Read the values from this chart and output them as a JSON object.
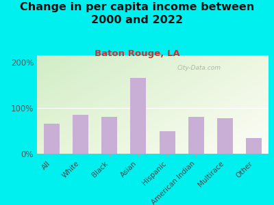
{
  "title": "Change in per capita income between\n2000 and 2022",
  "subtitle": "Baton Rouge, LA",
  "categories": [
    "All",
    "White",
    "Black",
    "Asian",
    "Hispanic",
    "American Indian",
    "Multirace",
    "Other"
  ],
  "values": [
    65,
    85,
    80,
    165,
    50,
    80,
    78,
    35
  ],
  "bar_color": "#c9aed6",
  "background_outer": "#00f0f0",
  "title_fontsize": 11.5,
  "subtitle_fontsize": 9.5,
  "subtitle_color": "#cc3333",
  "ylabel_ticks": [
    0,
    100,
    200
  ],
  "ylabel_labels": [
    "0%",
    "100%",
    "200%"
  ],
  "ylim": [
    0,
    215
  ],
  "watermark": "City-Data.com",
  "tick_label_fontsize": 7.5,
  "ytick_fontsize": 8.5
}
